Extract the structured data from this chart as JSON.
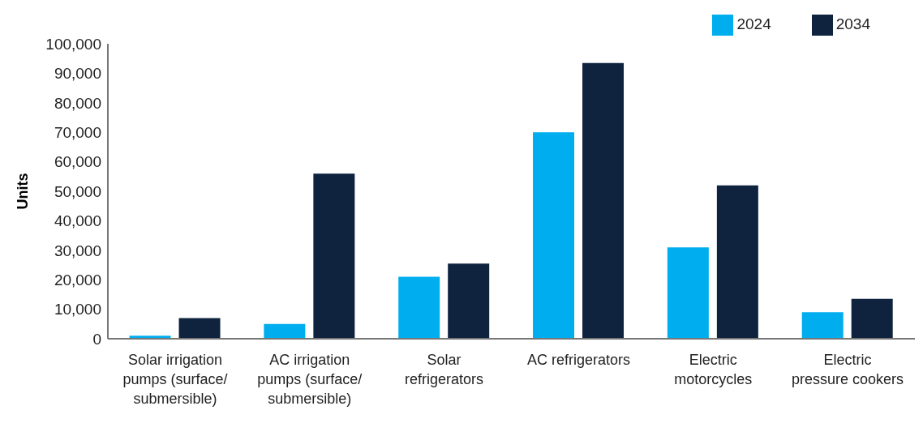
{
  "chart_data": {
    "type": "bar",
    "ylabel": "Units",
    "categories": [
      "Solar irrigation pumps (surface/ submersible)",
      "AC irrigation pumps (surface/ submersible)",
      "Solar refrigerators",
      "AC refrigerators",
      "Electric motorcycles",
      "Electric pressure cookers"
    ],
    "series": [
      {
        "name": "2024",
        "color": "#00adef",
        "values": [
          1000,
          5000,
          21000,
          70000,
          31000,
          9000
        ]
      },
      {
        "name": "2034",
        "color": "#0f233f",
        "values": [
          7000,
          56000,
          25500,
          93500,
          52000,
          13500
        ]
      }
    ],
    "ylim": [
      0,
      100000
    ],
    "yticks": [
      {
        "value": 0,
        "label": "0"
      },
      {
        "value": 10000,
        "label": "10,000"
      },
      {
        "value": 20000,
        "label": "20,000"
      },
      {
        "value": 30000,
        "label": "30,000"
      },
      {
        "value": 40000,
        "label": "40,000"
      },
      {
        "value": 50000,
        "label": "50,000"
      },
      {
        "value": 60000,
        "label": "60,000"
      },
      {
        "value": 70000,
        "label": "70,000"
      },
      {
        "value": 80000,
        "label": "80,000"
      },
      {
        "value": 90000,
        "label": "90,000"
      },
      {
        "value": 100000,
        "label": "100,000"
      }
    ],
    "grid": false,
    "legend": "top right"
  }
}
